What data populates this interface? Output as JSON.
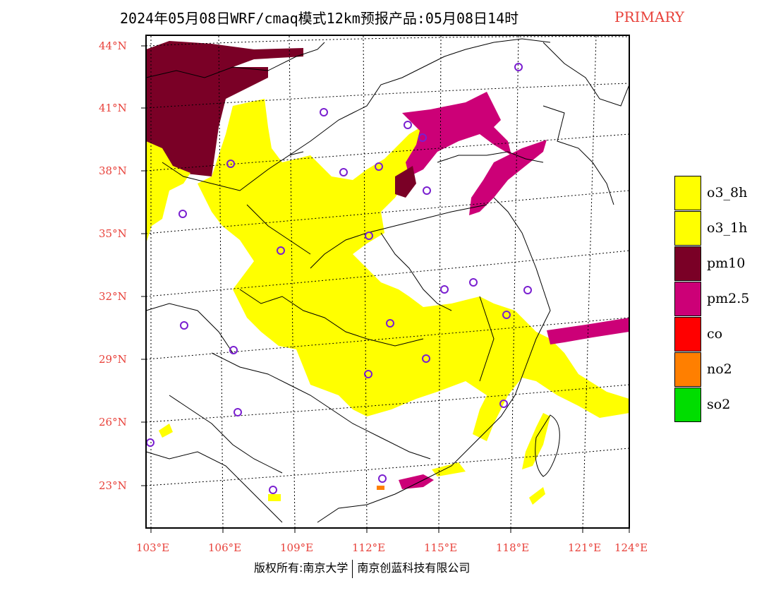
{
  "header": {
    "title": "2024年05月08日WRF/cmaq模式12km预报产品:05月08日14时",
    "tag": "PRIMARY"
  },
  "map": {
    "lat_labels": [
      "44°N",
      "41°N",
      "38°N",
      "35°N",
      "32°N",
      "29°N",
      "26°N",
      "23°N"
    ],
    "lon_labels": [
      "103°E",
      "106°E",
      "109°E",
      "112°E",
      "115°E",
      "118°E",
      "121°E",
      "124°E"
    ],
    "label_color": "#e8413a",
    "station_marker_color": "#7a1fd0"
  },
  "legend": {
    "items": [
      {
        "label": "o3_8h",
        "color": "#ffff00"
      },
      {
        "label": "o3_1h",
        "color": "#ffff00"
      },
      {
        "label": "pm10",
        "color": "#7a0026"
      },
      {
        "label": "pm2.5",
        "color": "#cc0077"
      },
      {
        "label": "co",
        "color": "#ff0000"
      },
      {
        "label": "no2",
        "color": "#ff7f00"
      },
      {
        "label": "so2",
        "color": "#00dd00"
      }
    ]
  },
  "footer": {
    "copyright": "版权所有:南京大学",
    "company": "南京创蓝科技有限公司"
  }
}
